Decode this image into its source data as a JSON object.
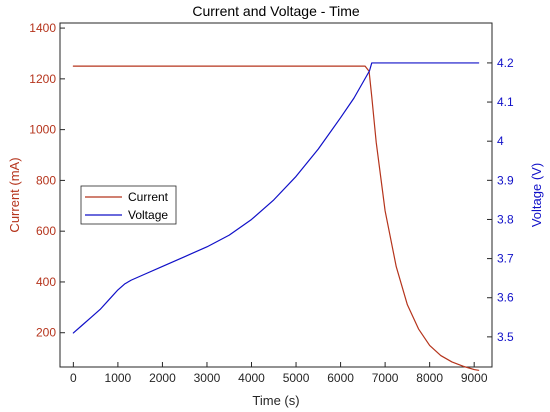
{
  "chart_data": {
    "type": "line",
    "title": "Current and Voltage - Time",
    "xlabel": "Time (s)",
    "xlim": [
      -300,
      9400
    ],
    "xticks": [
      0,
      1000,
      2000,
      3000,
      4000,
      5000,
      6000,
      7000,
      8000,
      9000
    ],
    "left_axis": {
      "label": "Current (mA)",
      "ylim": [
        65,
        1420
      ],
      "ticks": [
        200,
        400,
        600,
        800,
        1000,
        1200,
        1400
      ]
    },
    "right_axis": {
      "label": "Voltage (V)",
      "ylim": [
        3.423,
        4.302
      ],
      "ticks": [
        3.5,
        3.6,
        3.7,
        3.8,
        3.9,
        4.0,
        4.1,
        4.2
      ],
      "tick_labels": [
        "3.5",
        "3.6",
        "3.7",
        "3.8",
        "3.9",
        "4",
        "4.1",
        "4.2"
      ]
    },
    "grid": false,
    "legend_position": "middle-left",
    "series": [
      {
        "name": "Current",
        "axis": "left",
        "color": "#b5341c",
        "x": [
          0,
          1000,
          2000,
          3000,
          4000,
          5000,
          6000,
          6550,
          6640,
          6700,
          6800,
          7000,
          7250,
          7500,
          7750,
          8000,
          8250,
          8500,
          8750,
          9000,
          9100
        ],
        "y": [
          1250,
          1250,
          1250,
          1250,
          1250,
          1250,
          1250,
          1250,
          1230,
          1130,
          950,
          680,
          460,
          310,
          215,
          150,
          110,
          85,
          68,
          55,
          52
        ]
      },
      {
        "name": "Voltage",
        "axis": "right",
        "color": "#1010c8",
        "x": [
          0,
          200,
          400,
          600,
          800,
          1000,
          1150,
          1300,
          1600,
          2000,
          2500,
          3000,
          3500,
          4000,
          4500,
          5000,
          5500,
          6000,
          6300,
          6500,
          6650,
          6700,
          7000,
          8000,
          9000,
          9100
        ],
        "y": [
          3.51,
          3.53,
          3.55,
          3.57,
          3.595,
          3.62,
          3.635,
          3.645,
          3.66,
          3.68,
          3.705,
          3.73,
          3.76,
          3.8,
          3.85,
          3.91,
          3.98,
          4.06,
          4.11,
          4.15,
          4.18,
          4.2,
          4.2,
          4.2,
          4.2,
          4.2
        ]
      }
    ]
  }
}
